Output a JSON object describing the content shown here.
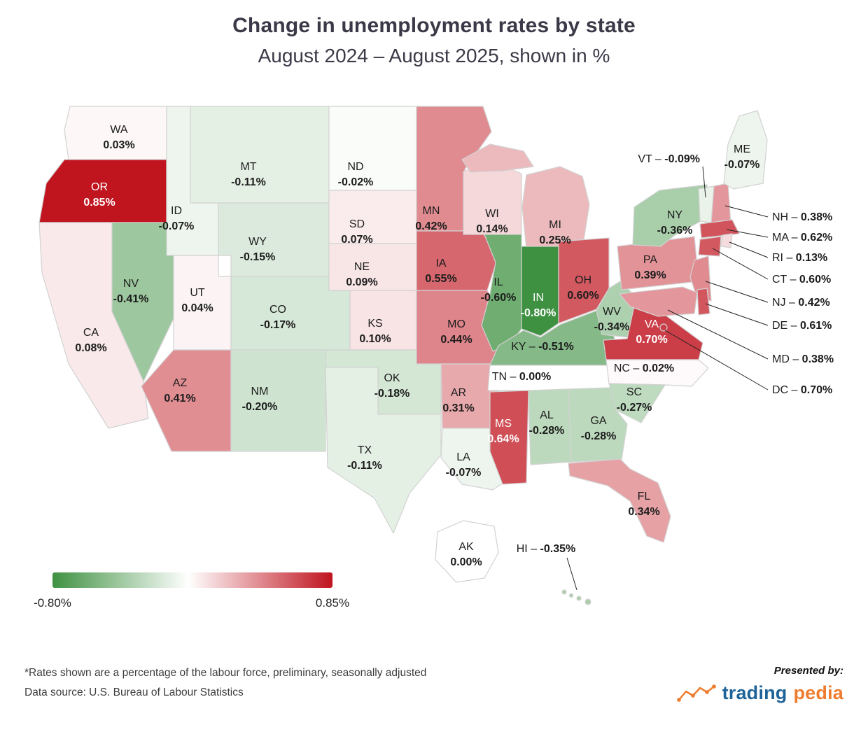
{
  "title": "Change in unemployment rates by state",
  "subtitle": "August 2024 – August 2025, shown in %",
  "legend": {
    "min_label": "-0.80%",
    "max_label": "0.85%"
  },
  "footnotes": {
    "line1": "*Rates shown are a percentage of the labour force, preliminary, seasonally adjusted",
    "line2": "Data source: U.S. Bureau of Labour Statistics"
  },
  "brand": {
    "presented_by": "Presented by:",
    "name_blue": "trading",
    "name_orange": "pedia",
    "blue": "#1d6398",
    "orange": "#ee7c2e"
  },
  "chart_data": {
    "type": "choropleth",
    "title": "Change in unemployment rates by state",
    "subtitle": "August 2024 – August 2025, shown in %",
    "unit": "percentage points of labour force",
    "value_range": [
      -0.8,
      0.85
    ],
    "color_scale": {
      "negative": "#3f9142",
      "zero": "#ffffff",
      "positive": "#c0141f"
    },
    "legend": {
      "min_label": "-0.80%",
      "max_label": "0.85%"
    },
    "states": [
      {
        "abbr": "WA",
        "value": 0.03,
        "display": "0.03%"
      },
      {
        "abbr": "OR",
        "value": 0.85,
        "display": "0.85%"
      },
      {
        "abbr": "CA",
        "value": 0.08,
        "display": "0.08%"
      },
      {
        "abbr": "NV",
        "value": -0.41,
        "display": "-0.41%"
      },
      {
        "abbr": "ID",
        "value": -0.07,
        "display": "-0.07%"
      },
      {
        "abbr": "MT",
        "value": -0.11,
        "display": "-0.11%"
      },
      {
        "abbr": "WY",
        "value": -0.15,
        "display": "-0.15%"
      },
      {
        "abbr": "UT",
        "value": 0.04,
        "display": "0.04%"
      },
      {
        "abbr": "AZ",
        "value": 0.41,
        "display": "0.41%"
      },
      {
        "abbr": "CO",
        "value": -0.17,
        "display": "-0.17%"
      },
      {
        "abbr": "NM",
        "value": -0.2,
        "display": "-0.20%"
      },
      {
        "abbr": "ND",
        "value": -0.02,
        "display": "-0.02%"
      },
      {
        "abbr": "SD",
        "value": 0.07,
        "display": "0.07%"
      },
      {
        "abbr": "NE",
        "value": 0.09,
        "display": "0.09%"
      },
      {
        "abbr": "KS",
        "value": 0.1,
        "display": "0.10%"
      },
      {
        "abbr": "OK",
        "value": -0.18,
        "display": "-0.18%"
      },
      {
        "abbr": "TX",
        "value": -0.11,
        "display": "-0.11%"
      },
      {
        "abbr": "MN",
        "value": 0.42,
        "display": "0.42%"
      },
      {
        "abbr": "IA",
        "value": 0.55,
        "display": "0.55%"
      },
      {
        "abbr": "MO",
        "value": 0.44,
        "display": "0.44%"
      },
      {
        "abbr": "AR",
        "value": 0.31,
        "display": "0.31%"
      },
      {
        "abbr": "LA",
        "value": -0.07,
        "display": "-0.07%"
      },
      {
        "abbr": "WI",
        "value": 0.14,
        "display": "0.14%"
      },
      {
        "abbr": "IL",
        "value": -0.6,
        "display": "-0.60%"
      },
      {
        "abbr": "MI",
        "value": 0.25,
        "display": "0.25%"
      },
      {
        "abbr": "IN",
        "value": -0.8,
        "display": "-0.80%"
      },
      {
        "abbr": "OH",
        "value": 0.6,
        "display": "0.60%"
      },
      {
        "abbr": "KY",
        "value": -0.51,
        "display": "-0.51%"
      },
      {
        "abbr": "TN",
        "value": 0.0,
        "display": "0.00%"
      },
      {
        "abbr": "MS",
        "value": 0.64,
        "display": "0.64%"
      },
      {
        "abbr": "AL",
        "value": -0.28,
        "display": "-0.28%"
      },
      {
        "abbr": "GA",
        "value": -0.28,
        "display": "-0.28%"
      },
      {
        "abbr": "FL",
        "value": 0.34,
        "display": "0.34%"
      },
      {
        "abbr": "SC",
        "value": -0.27,
        "display": "-0.27%"
      },
      {
        "abbr": "NC",
        "value": 0.02,
        "display": "0.02%"
      },
      {
        "abbr": "VA",
        "value": 0.7,
        "display": "0.70%"
      },
      {
        "abbr": "WV",
        "value": -0.34,
        "display": "-0.34%"
      },
      {
        "abbr": "PA",
        "value": 0.39,
        "display": "0.39%"
      },
      {
        "abbr": "NY",
        "value": -0.36,
        "display": "-0.36%"
      },
      {
        "abbr": "NJ",
        "value": 0.42,
        "display": "0.42%"
      },
      {
        "abbr": "DE",
        "value": 0.61,
        "display": "0.61%"
      },
      {
        "abbr": "MD",
        "value": 0.38,
        "display": "0.38%"
      },
      {
        "abbr": "DC",
        "value": 0.7,
        "display": "0.70%"
      },
      {
        "abbr": "VT",
        "value": -0.09,
        "display": "-0.09%"
      },
      {
        "abbr": "NH",
        "value": 0.38,
        "display": "0.38%"
      },
      {
        "abbr": "MA",
        "value": 0.62,
        "display": "0.62%"
      },
      {
        "abbr": "RI",
        "value": 0.13,
        "display": "0.13%"
      },
      {
        "abbr": "CT",
        "value": 0.6,
        "display": "0.60%"
      },
      {
        "abbr": "ME",
        "value": -0.07,
        "display": "-0.07%"
      },
      {
        "abbr": "AK",
        "value": 0.0,
        "display": "0.00%"
      },
      {
        "abbr": "HI",
        "value": -0.35,
        "display": "-0.35%"
      }
    ]
  }
}
